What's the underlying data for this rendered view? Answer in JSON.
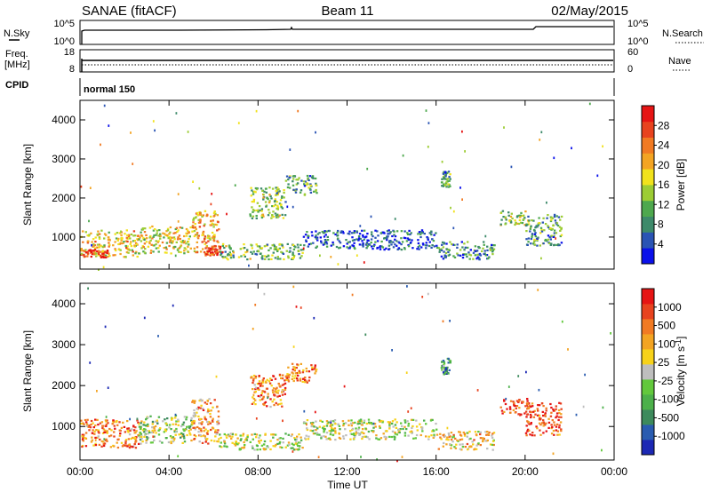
{
  "header": {
    "station": "SANAE (fitACF)",
    "beam": "Beam 11",
    "date": "02/May/2015"
  },
  "strip_noise": {
    "left_label": "N.Sky",
    "left_ticks": [
      "10^5",
      "10^0"
    ],
    "right_label": "N.Search",
    "right_ticks": [
      "10^5",
      "10^0"
    ]
  },
  "strip_freq": {
    "left_label_1": "Freq.",
    "left_label_2": "[MHz]",
    "left_ticks": [
      "18",
      "8"
    ],
    "right_label": "Nave",
    "right_ticks": [
      "60",
      "0"
    ]
  },
  "strip_cpid": {
    "label": "CPID",
    "mode_text": "normal 150"
  },
  "chart_data": [
    {
      "type": "heatmap",
      "name": "power",
      "xlabel": "",
      "ylabel": "Slant Range [km]",
      "x_tick_labels": [
        "00:00",
        "04:00",
        "08:00",
        "12:00",
        "16:00",
        "20:00",
        "00:00"
      ],
      "x_range_hours": [
        0,
        24
      ],
      "y_ticks": [
        1000,
        2000,
        3000,
        4000
      ],
      "y_range": [
        180,
        4500
      ],
      "colorbar": {
        "label": "Power [dB]",
        "tick_labels": [
          "4",
          "8",
          "12",
          "16",
          "20",
          "24",
          "28"
        ],
        "colors": [
          "#0a10ea",
          "#2a54b4",
          "#3d8a6a",
          "#4ea84e",
          "#9ccc34",
          "#f1e21c",
          "#f3a423",
          "#f17a23",
          "#e8431f",
          "#e61414"
        ]
      },
      "clusters": [
        {
          "t0": 0.0,
          "t1": 2.6,
          "r0": 500,
          "r1": 1200,
          "level": 0.6
        },
        {
          "t0": 0.1,
          "t1": 1.2,
          "r0": 500,
          "r1": 700,
          "level": 0.9
        },
        {
          "t0": 2.6,
          "t1": 5.0,
          "r0": 600,
          "r1": 1300,
          "level": 0.55
        },
        {
          "t0": 5.0,
          "t1": 6.2,
          "r0": 600,
          "r1": 1700,
          "level": 0.65
        },
        {
          "t0": 5.6,
          "t1": 6.4,
          "r0": 550,
          "r1": 800,
          "level": 0.9
        },
        {
          "t0": 6.2,
          "t1": 10.0,
          "r0": 450,
          "r1": 850,
          "level": 0.4
        },
        {
          "t0": 7.6,
          "t1": 9.2,
          "r0": 1500,
          "r1": 2300,
          "level": 0.4
        },
        {
          "t0": 9.2,
          "t1": 10.6,
          "r0": 2100,
          "r1": 2600,
          "level": 0.3
        },
        {
          "t0": 10.0,
          "t1": 16.0,
          "r0": 700,
          "r1": 1200,
          "level": 0.15
        },
        {
          "t0": 16.0,
          "t1": 18.6,
          "r0": 450,
          "r1": 900,
          "level": 0.25
        },
        {
          "t0": 16.2,
          "t1": 16.6,
          "r0": 2300,
          "r1": 2700,
          "level": 0.3
        },
        {
          "t0": 18.8,
          "t1": 20.2,
          "r0": 1300,
          "r1": 1700,
          "level": 0.45
        },
        {
          "t0": 20.0,
          "t1": 21.6,
          "r0": 800,
          "r1": 1600,
          "level": 0.3
        }
      ]
    },
    {
      "type": "heatmap",
      "name": "velocity",
      "xlabel": "Time UT",
      "ylabel": "Slant Range [km]",
      "x_tick_labels": [
        "00:00",
        "04:00",
        "08:00",
        "12:00",
        "16:00",
        "20:00",
        "00:00"
      ],
      "x_range_hours": [
        0,
        24
      ],
      "y_ticks": [
        1000,
        2000,
        3000,
        4000
      ],
      "y_range": [
        180,
        4500
      ],
      "colorbar": {
        "label": "Velocity [m s^-1]",
        "tick_labels": [
          "1000",
          "500",
          "100",
          "25",
          "-25",
          "-100",
          "-500",
          "-1000"
        ],
        "colors": [
          "#1c28b4",
          "#2a5cb0",
          "#3d8a5c",
          "#4cb04a",
          "#62c83c",
          "#bebebe",
          "#f7d21a",
          "#f3a423",
          "#f17a23",
          "#e8431f",
          "#e61414"
        ]
      },
      "clusters": [
        {
          "t0": 0.0,
          "t1": 2.6,
          "r0": 500,
          "r1": 1200,
          "level": 0.75
        },
        {
          "t0": 2.6,
          "t1": 5.0,
          "r0": 600,
          "r1": 1300,
          "level": 0.45
        },
        {
          "t0": 5.0,
          "t1": 6.2,
          "r0": 600,
          "r1": 1700,
          "level": 0.7
        },
        {
          "t0": 6.2,
          "t1": 10.0,
          "r0": 450,
          "r1": 850,
          "level": 0.5
        },
        {
          "t0": 7.6,
          "t1": 9.2,
          "r0": 1500,
          "r1": 2300,
          "level": 0.75
        },
        {
          "t0": 9.2,
          "t1": 10.6,
          "r0": 2100,
          "r1": 2600,
          "level": 0.78
        },
        {
          "t0": 10.0,
          "t1": 16.0,
          "r0": 700,
          "r1": 1200,
          "level": 0.5
        },
        {
          "t0": 16.0,
          "t1": 18.6,
          "r0": 450,
          "r1": 900,
          "level": 0.6
        },
        {
          "t0": 16.2,
          "t1": 16.6,
          "r0": 2300,
          "r1": 2700,
          "level": 0.25
        },
        {
          "t0": 18.8,
          "t1": 20.2,
          "r0": 1300,
          "r1": 1700,
          "level": 0.9
        },
        {
          "t0": 20.0,
          "t1": 21.6,
          "r0": 800,
          "r1": 1600,
          "level": 0.85
        }
      ]
    }
  ]
}
